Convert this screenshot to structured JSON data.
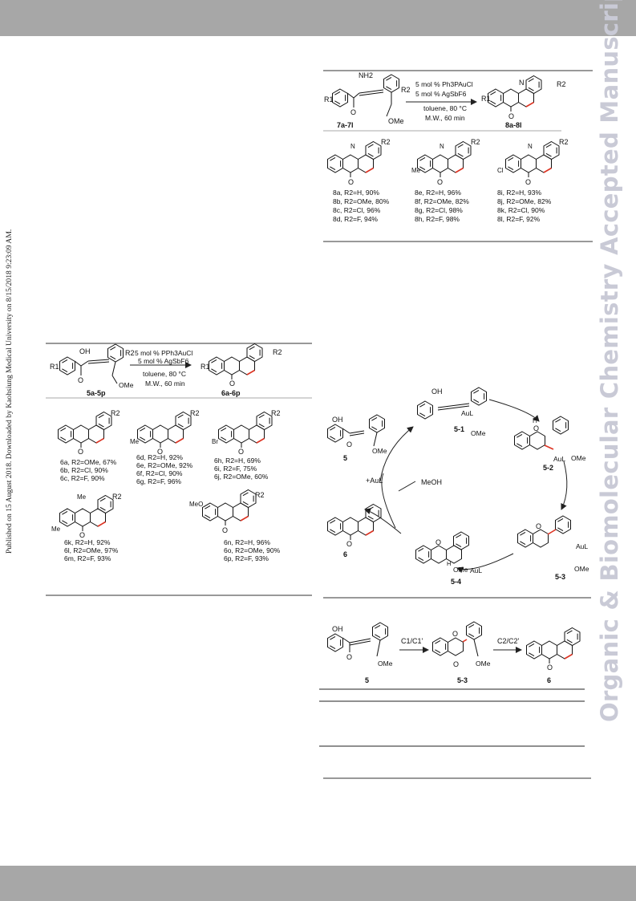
{
  "watermark": "Organic & Biomolecular Chemistry Accepted Manuscript",
  "side_note": "Published on 15 August 2018. Downloaded by Kaohsiung Medical University on 8/15/2018 9:23:09 AM.",
  "scheme_top": {
    "cond1": "5 mol % Ph3PAuCl",
    "cond2": "5 mol % AgSbF6",
    "cond3": "toluene, 80 °C",
    "cond4": "M.W., 60 min",
    "sm_label": "7a-7l",
    "prod_label": "8a-8l",
    "substituents": [
      "R1",
      "R2",
      "NH2",
      "OMe",
      "O",
      "H",
      "N",
      "Me",
      "Cl"
    ],
    "col1": [
      "8a, R2=H, 90%",
      "8b, R2=OMe, 80%",
      "8c, R2=Cl, 96%",
      "8d, R2=F, 94%"
    ],
    "col2": [
      "8e, R2=H, 96%",
      "8f, R2=OMe, 82%",
      "8g, R2=Cl, 98%",
      "8h, R2=F, 98%"
    ],
    "col3": [
      "8i, R2=H, 93%",
      "8j, R2=OMe, 82%",
      "8k, R2=Cl, 90%",
      "8l, R2=F, 92%"
    ]
  },
  "scheme_left": {
    "cond1": "5 mol % PPh3AuCl",
    "cond2": "5 mol % AgSbF6",
    "cond3": "toluene, 80 °C",
    "cond4": "M.W., 60 min",
    "sm_label": "5a-5p",
    "prod_label": "6a-6p",
    "substituents": [
      "R1",
      "R2",
      "OH",
      "OMe",
      "O",
      "Me",
      "Br",
      "MeO"
    ],
    "g1": [
      "6a, R2=OMe, 67%",
      "6b, R2=Cl, 90%",
      "6c, R2=F, 90%"
    ],
    "g2": [
      "6d, R2=H, 92%",
      "6e, R2=OMe, 92%",
      "6f, R2=Cl, 90%",
      "6g, R2=F, 96%"
    ],
    "g3": [
      "6h, R2=H, 69%",
      "6i, R2=F, 75%",
      "6j, R2=OMe, 60%"
    ],
    "g4": [
      "6k, R2=H, 92%",
      "6l, R2=OMe, 97%",
      "6m, R2=F, 93%"
    ],
    "g5": [
      "6n, R2=H, 96%",
      "6o, R2=OMe, 90%",
      "6p, R2=F, 93%"
    ]
  },
  "mechanism": {
    "labels": [
      "5",
      "5-1",
      "5-2",
      "5-3",
      "5-4",
      "6"
    ],
    "catalyst": "+AuL",
    "meoh": "MeOH",
    "texts": [
      "OH",
      "OMe",
      "AuL",
      "O",
      "H"
    ]
  },
  "scheme_bottom": {
    "step1": "C1/C1'",
    "step2": "C2/C2'",
    "labels": [
      "5",
      "5-3",
      "6"
    ],
    "texts": [
      "OH",
      "OMe",
      "O"
    ]
  }
}
